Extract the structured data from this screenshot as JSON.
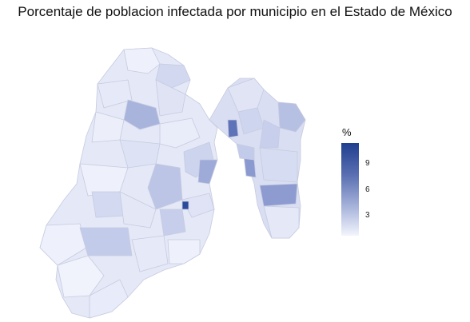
{
  "title": "Porcentaje de poblacion infectada por municipio en el Estado de México",
  "legend": {
    "title": "%",
    "ticks": [
      "9",
      "6",
      "3"
    ],
    "colors": {
      "low": "#f3f5fd",
      "mid": "#aab6dc",
      "high": "#1f3f8f"
    }
  },
  "colors": {
    "border": "#c9cde0",
    "outline": "#b9bfd6"
  }
}
